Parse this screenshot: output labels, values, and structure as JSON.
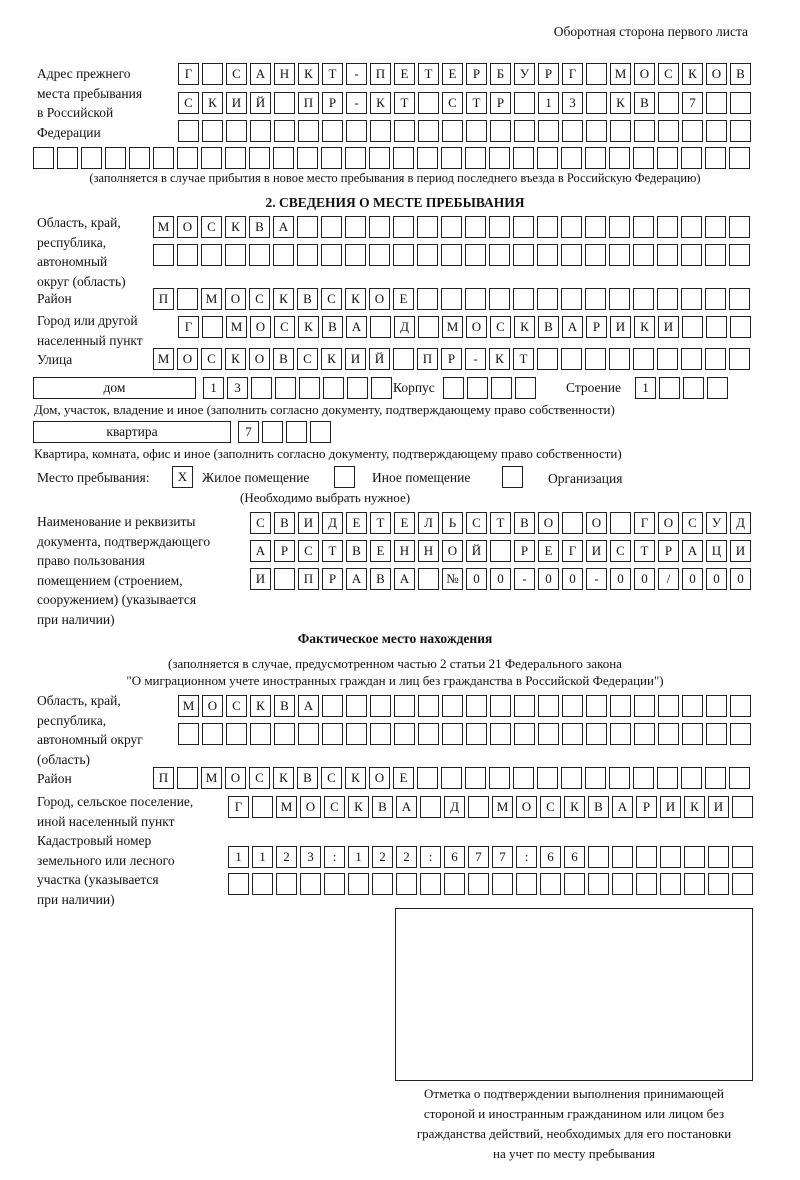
{
  "header": "Оборотная сторона первого листа",
  "prev_address": {
    "label": [
      "Адрес прежнего",
      "места пребывания",
      "в Российской",
      "Федерации"
    ],
    "rows": [
      [
        "Г",
        "",
        "С",
        "А",
        "Н",
        "К",
        "Т",
        "-",
        "П",
        "Е",
        "Т",
        "Е",
        "Р",
        "Б",
        "У",
        "Р",
        "Г",
        "",
        "М",
        "О",
        "С",
        "К",
        "О",
        "В"
      ],
      [
        "С",
        "К",
        "И",
        "Й",
        "",
        "П",
        "Р",
        "-",
        "К",
        "Т",
        "",
        "С",
        "Т",
        "Р",
        "",
        "1",
        "3",
        "",
        "К",
        "В",
        "",
        "7",
        "",
        ""
      ],
      [
        "",
        "",
        "",
        "",
        "",
        "",
        "",
        "",
        "",
        "",
        "",
        "",
        "",
        "",
        "",
        "",
        "",
        "",
        "",
        "",
        "",
        "",
        "",
        ""
      ],
      [
        "",
        "",
        "",
        "",
        "",
        "",
        "",
        "",
        "",
        "",
        "",
        "",
        "",
        "",
        "",
        "",
        "",
        "",
        "",
        "",
        "",
        "",
        "",
        "",
        "",
        "",
        "",
        "",
        "",
        ""
      ]
    ],
    "note": "(заполняется в случае прибытия в новое место пребывания в период последнего въезда в Российскую Федерацию)"
  },
  "section2": {
    "title": "2. СВЕДЕНИЯ О МЕСТЕ ПРЕБЫВАНИЯ",
    "region_label": [
      "Область, край,",
      "республика,",
      "автономный",
      "округ (область)"
    ],
    "region_rows": [
      [
        "М",
        "О",
        "С",
        "К",
        "В",
        "А",
        "",
        "",
        "",
        "",
        "",
        "",
        "",
        "",
        "",
        "",
        "",
        "",
        "",
        "",
        "",
        "",
        "",
        "",
        ""
      ],
      [
        "",
        "",
        "",
        "",
        "",
        "",
        "",
        "",
        "",
        "",
        "",
        "",
        "",
        "",
        "",
        "",
        "",
        "",
        "",
        "",
        "",
        "",
        "",
        "",
        ""
      ]
    ],
    "district_label": "Район",
    "district": [
      "П",
      "",
      "М",
      "О",
      "С",
      "К",
      "В",
      "С",
      "К",
      "О",
      "Е",
      "",
      "",
      "",
      "",
      "",
      "",
      "",
      "",
      "",
      "",
      "",
      "",
      "",
      ""
    ],
    "city_label": [
      "Город или другой",
      "населенный пункт"
    ],
    "city": [
      "Г",
      "",
      "М",
      "О",
      "С",
      "К",
      "В",
      "А",
      "",
      "Д",
      "",
      "М",
      "О",
      "С",
      "К",
      "В",
      "А",
      "Р",
      "И",
      "К",
      "И",
      "",
      "",
      ""
    ],
    "street_label": "Улица",
    "street": [
      "М",
      "О",
      "С",
      "К",
      "О",
      "В",
      "С",
      "К",
      "И",
      "Й",
      "",
      "П",
      "Р",
      "-",
      "К",
      "Т",
      "",
      "",
      "",
      "",
      "",
      "",
      "",
      "",
      ""
    ],
    "house_type": "дом",
    "house": [
      "1",
      "3",
      "",
      "",
      "",
      "",
      "",
      ""
    ],
    "korpus_label": "Корпус",
    "korpus": [
      "",
      "",
      "",
      ""
    ],
    "building_label": "Строение",
    "building": [
      "1",
      "",
      "",
      ""
    ],
    "house_note": "Дом, участок, владение и иное (заполнить согласно документу, подтверждающему право собственности)",
    "flat_type": "квартира",
    "flat": [
      "7",
      "",
      "",
      ""
    ],
    "flat_note": "Квартира, комната, офис и иное (заполнить согласно документу, подтверждающему право собственности)",
    "place_label": "Место пребывания:",
    "place_options": [
      {
        "label": "Жилое помещение",
        "mark": "X"
      },
      {
        "label": "Иное помещение",
        "mark": ""
      },
      {
        "label": "Организация",
        "mark": ""
      }
    ],
    "place_note": "(Необходимо выбрать нужное)",
    "doc_label": [
      "Наименование и реквизиты",
      "документа, подтверждающего",
      "право пользования",
      "помещением (строением,",
      "сооружением) (указывается",
      "при наличии)"
    ],
    "doc_rows": [
      [
        "С",
        "В",
        "И",
        "Д",
        "Е",
        "Т",
        "Е",
        "Л",
        "Ь",
        "С",
        "Т",
        "В",
        "О",
        "",
        "О",
        "",
        "Г",
        "О",
        "С",
        "У",
        "Д"
      ],
      [
        "А",
        "Р",
        "С",
        "Т",
        "В",
        "Е",
        "Н",
        "Н",
        "О",
        "Й",
        "",
        "Р",
        "Е",
        "Г",
        "И",
        "С",
        "Т",
        "Р",
        "А",
        "Ц",
        "И"
      ],
      [
        "И",
        "",
        "П",
        "Р",
        "А",
        "В",
        "А",
        "",
        "№",
        "0",
        "0",
        "-",
        "0",
        "0",
        "-",
        "0",
        "0",
        "/",
        "0",
        "0",
        "0"
      ]
    ]
  },
  "actual": {
    "title": "Фактическое место нахождения",
    "note1": "(заполняется в случае, предусмотренном частью 2 статьи 21 Федерального закона",
    "note2": "\"О миграционном учете иностранных граждан и лиц без гражданства в Российской Федерации\")",
    "region_label": [
      "Область, край,",
      "республика,",
      "автономный округ",
      "(область)"
    ],
    "region_rows": [
      [
        "М",
        "О",
        "С",
        "К",
        "В",
        "А",
        "",
        "",
        "",
        "",
        "",
        "",
        "",
        "",
        "",
        "",
        "",
        "",
        "",
        "",
        "",
        "",
        "",
        ""
      ],
      [
        "",
        "",
        "",
        "",
        "",
        "",
        "",
        "",
        "",
        "",
        "",
        "",
        "",
        "",
        "",
        "",
        "",
        "",
        "",
        "",
        "",
        "",
        "",
        ""
      ]
    ],
    "district_label": "Район",
    "district": [
      "П",
      "",
      "М",
      "О",
      "С",
      "К",
      "В",
      "С",
      "К",
      "О",
      "Е",
      "",
      "",
      "",
      "",
      "",
      "",
      "",
      "",
      "",
      "",
      "",
      "",
      "",
      ""
    ],
    "city_label": [
      "Город, сельское поселение,",
      "иной населенный пункт"
    ],
    "city": [
      "Г",
      "",
      "М",
      "О",
      "С",
      "К",
      "В",
      "А",
      "",
      "Д",
      "",
      "М",
      "О",
      "С",
      "К",
      "В",
      "А",
      "Р",
      "И",
      "К",
      "И",
      ""
    ],
    "cadastral_label": [
      "Кадастровый номер",
      "земельного или лесного",
      "участка (указывается",
      "при наличии)"
    ],
    "cadastral_rows": [
      [
        "1",
        "1",
        "2",
        "3",
        ":",
        "1",
        "2",
        "2",
        ":",
        "6",
        "7",
        "7",
        ":",
        "6",
        "6",
        "",
        "",
        "",
        "",
        "",
        "",
        ""
      ],
      [
        "",
        "",
        "",
        "",
        "",
        "",
        "",
        "",
        "",
        "",
        "",
        "",
        "",
        "",
        "",
        "",
        "",
        "",
        "",
        "",
        "",
        ""
      ]
    ]
  },
  "stamp_caption": [
    "Отметка о подтверждении выполнения принимающей",
    "стороной и иностранным гражданином или лицом без",
    "гражданства действий, необходимых для его постановки",
    "на учет по месту пребывания"
  ]
}
